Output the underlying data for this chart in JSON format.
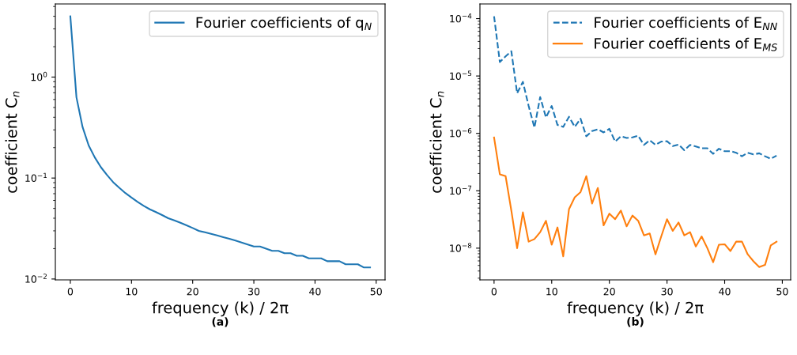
{
  "chart_data": [
    {
      "type": "line",
      "xlabel": "frequency (k) / 2π",
      "ylabel": "coefficient C$_{n}$",
      "annotations": [
        "(a)"
      ],
      "log": "y",
      "legend": "top right",
      "grid": false,
      "x": [
        0,
        1,
        2,
        3,
        4,
        5,
        6,
        7,
        8,
        9,
        10,
        11,
        12,
        13,
        14,
        15,
        16,
        17,
        18,
        19,
        20,
        21,
        22,
        23,
        24,
        25,
        26,
        27,
        28,
        29,
        30,
        31,
        32,
        33,
        34,
        35,
        36,
        37,
        38,
        39,
        40,
        41,
        42,
        43,
        44,
        45,
        46,
        47,
        48,
        49
      ],
      "xlim": [
        -2.45,
        51.45
      ],
      "xticks": [
        0,
        10,
        20,
        30,
        40,
        50
      ],
      "ylim": [
        0.0098,
        5.3
      ],
      "yticks": [
        {
          "value": 0.01,
          "label": "10$^{−2}$"
        },
        {
          "value": 0.1,
          "label": "10$^{−1}$"
        },
        {
          "value": 1,
          "label": "10$^{0}$"
        }
      ],
      "series": [
        {
          "name": "Fourier coefficients of q$_{N}$",
          "color": "#1f77b4",
          "line_style": "solid",
          "values": [
            4.0,
            0.63,
            0.32,
            0.21,
            0.16,
            0.128,
            0.107,
            0.091,
            0.08,
            0.071,
            0.064,
            0.058,
            0.053,
            0.049,
            0.046,
            0.043,
            0.04,
            0.038,
            0.036,
            0.034,
            0.032,
            0.03,
            0.029,
            0.028,
            0.027,
            0.026,
            0.025,
            0.024,
            0.023,
            0.022,
            0.021,
            0.021,
            0.02,
            0.019,
            0.019,
            0.018,
            0.018,
            0.017,
            0.017,
            0.016,
            0.016,
            0.016,
            0.015,
            0.015,
            0.015,
            0.014,
            0.014,
            0.014,
            0.013,
            0.013
          ]
        }
      ]
    },
    {
      "type": "line",
      "xlabel": "frequency (k) / 2π",
      "ylabel": "coefficient C$_{n}$",
      "annotations": [
        "(b)"
      ],
      "log": "y",
      "legend": "top right",
      "grid": false,
      "x": [
        0,
        1,
        2,
        3,
        4,
        5,
        6,
        7,
        8,
        9,
        10,
        11,
        12,
        13,
        14,
        15,
        16,
        17,
        18,
        19,
        20,
        21,
        22,
        23,
        24,
        25,
        26,
        27,
        28,
        29,
        30,
        31,
        32,
        33,
        34,
        35,
        36,
        37,
        38,
        39,
        40,
        41,
        42,
        43,
        44,
        45,
        46,
        47,
        48,
        49
      ],
      "xlim": [
        -2.45,
        51.45
      ],
      "xticks": [
        0,
        10,
        20,
        30,
        40,
        50
      ],
      "ylim": [
        2.8e-09,
        0.00018
      ],
      "yticks": [
        {
          "value": 1e-08,
          "label": "10$^{−8}$"
        },
        {
          "value": 1e-07,
          "label": "10$^{−7}$"
        },
        {
          "value": 1e-06,
          "label": "10$^{−6}$"
        },
        {
          "value": 1e-05,
          "label": "10$^{−5}$"
        },
        {
          "value": 0.0001,
          "label": "10$^{−4}$"
        }
      ],
      "series": [
        {
          "name": "Fourier coefficients of E$_{NN}$",
          "color": "#1f77b4",
          "line_style": "dashed",
          "values": [
            0.00011,
            1.75e-05,
            2.2e-05,
            2.7e-05,
            5e-06,
            7.9e-06,
            3e-06,
            1.26e-06,
            4.3e-06,
            1.9e-06,
            3e-06,
            1.4e-06,
            1.3e-06,
            1.95e-06,
            1.3e-06,
            1.8e-06,
            8.9e-07,
            1.1e-06,
            1.18e-06,
            1.04e-06,
            1.2e-06,
            7.2e-07,
            8.9e-07,
            8.3e-07,
            8.5e-07,
            9.1e-07,
            6.3e-07,
            7.6e-07,
            6.3e-07,
            7.2e-07,
            7.3e-07,
            6e-07,
            6.4e-07,
            5.1e-07,
            6.3e-07,
            5.9e-07,
            5.5e-07,
            5.5e-07,
            4.4e-07,
            5.4e-07,
            4.9e-07,
            4.9e-07,
            4.6e-07,
            4e-07,
            4.6e-07,
            4.3e-07,
            4.5e-07,
            4e-07,
            3.6e-07,
            4.1e-07
          ]
        },
        {
          "name": "Fourier coefficients of E$_{MS}$",
          "color": "#ff7f0e",
          "line_style": "solid",
          "values": [
            8.5e-07,
            1.94e-07,
            1.8e-07,
            4.5e-08,
            1e-08,
            4.2e-08,
            1.3e-08,
            1.44e-08,
            1.9e-08,
            3e-08,
            1.15e-08,
            2.3e-08,
            7.2e-09,
            4.8e-08,
            7.7e-08,
            9.5e-08,
            1.8e-07,
            6e-08,
            1.12e-07,
            2.5e-08,
            4e-08,
            3.2e-08,
            4.5e-08,
            2.4e-08,
            3.7e-08,
            3e-08,
            1.67e-08,
            1.8e-08,
            7.8e-09,
            1.6e-08,
            3.2e-08,
            2e-08,
            2.8e-08,
            1.67e-08,
            1.9e-08,
            1.07e-08,
            1.6e-08,
            1e-08,
            5.7e-09,
            1.15e-08,
            1.17e-08,
            8.9e-09,
            1.3e-08,
            1.3e-08,
            7.8e-09,
            5.9e-09,
            4.7e-09,
            5.1e-09,
            1.12e-08,
            1.3e-08
          ]
        }
      ]
    }
  ]
}
